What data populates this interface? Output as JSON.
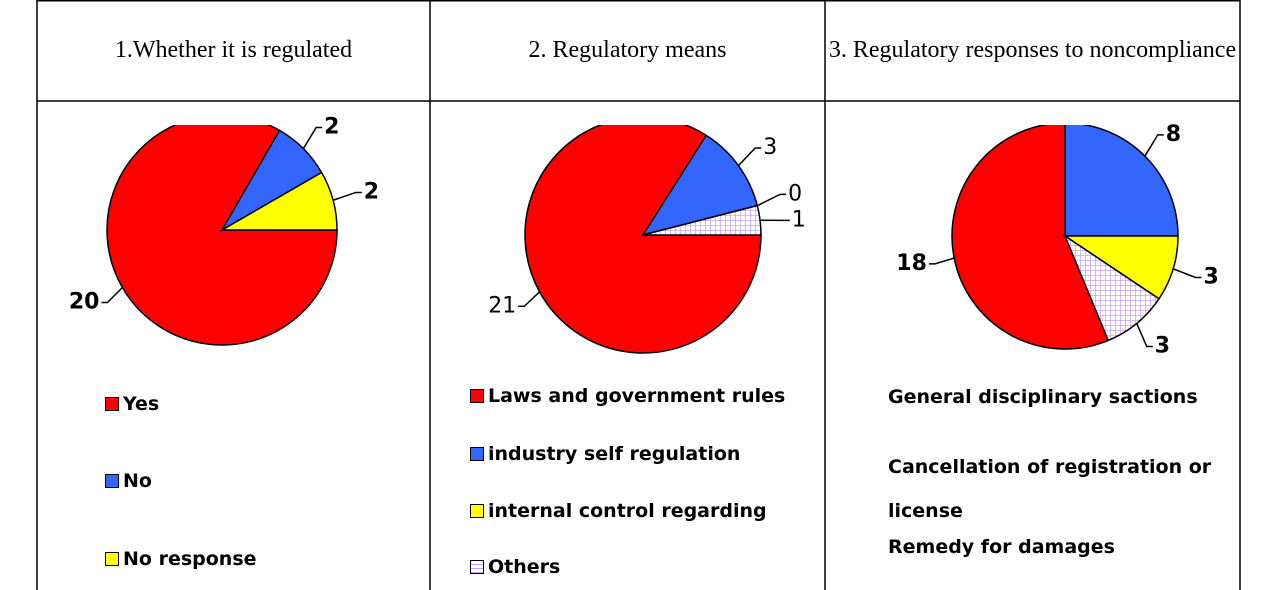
{
  "table": {
    "headers": [
      "1.Whether it is regulated",
      "2. Regulatory means",
      "3. Regulatory responses to noncompliance"
    ]
  },
  "chart_data": [
    {
      "type": "pie",
      "categories": [
        "Yes",
        "No",
        "No response"
      ],
      "values": [
        20,
        2,
        2
      ],
      "colors": [
        "#ff0000",
        "#3366ff",
        "#ffff00"
      ],
      "hatch": [
        false,
        false,
        false
      ],
      "start_angle": 0,
      "legend_swatches": true
    },
    {
      "type": "pie",
      "categories": [
        "Laws and government rules",
        "industry self regulation",
        "internal control regarding",
        "Others"
      ],
      "values": [
        21,
        3,
        0,
        1
      ],
      "colors": [
        "#ff0000",
        "#3366ff",
        "#ffff00",
        "#e6ccff"
      ],
      "hatch": [
        false,
        false,
        false,
        true
      ],
      "start_angle": 0,
      "legend_swatches": true
    },
    {
      "type": "pie",
      "categories": [
        "General disciplinary sactions",
        "Cancellation of registration or license",
        "Remedy for damages",
        null
      ],
      "values": [
        18,
        8,
        3,
        3
      ],
      "colors": [
        "#ff0000",
        "#3366ff",
        "#ffff00",
        "#e6ccff"
      ],
      "hatch": [
        false,
        false,
        false,
        true
      ],
      "start_angle": 67.5,
      "legend_swatches": false
    }
  ]
}
